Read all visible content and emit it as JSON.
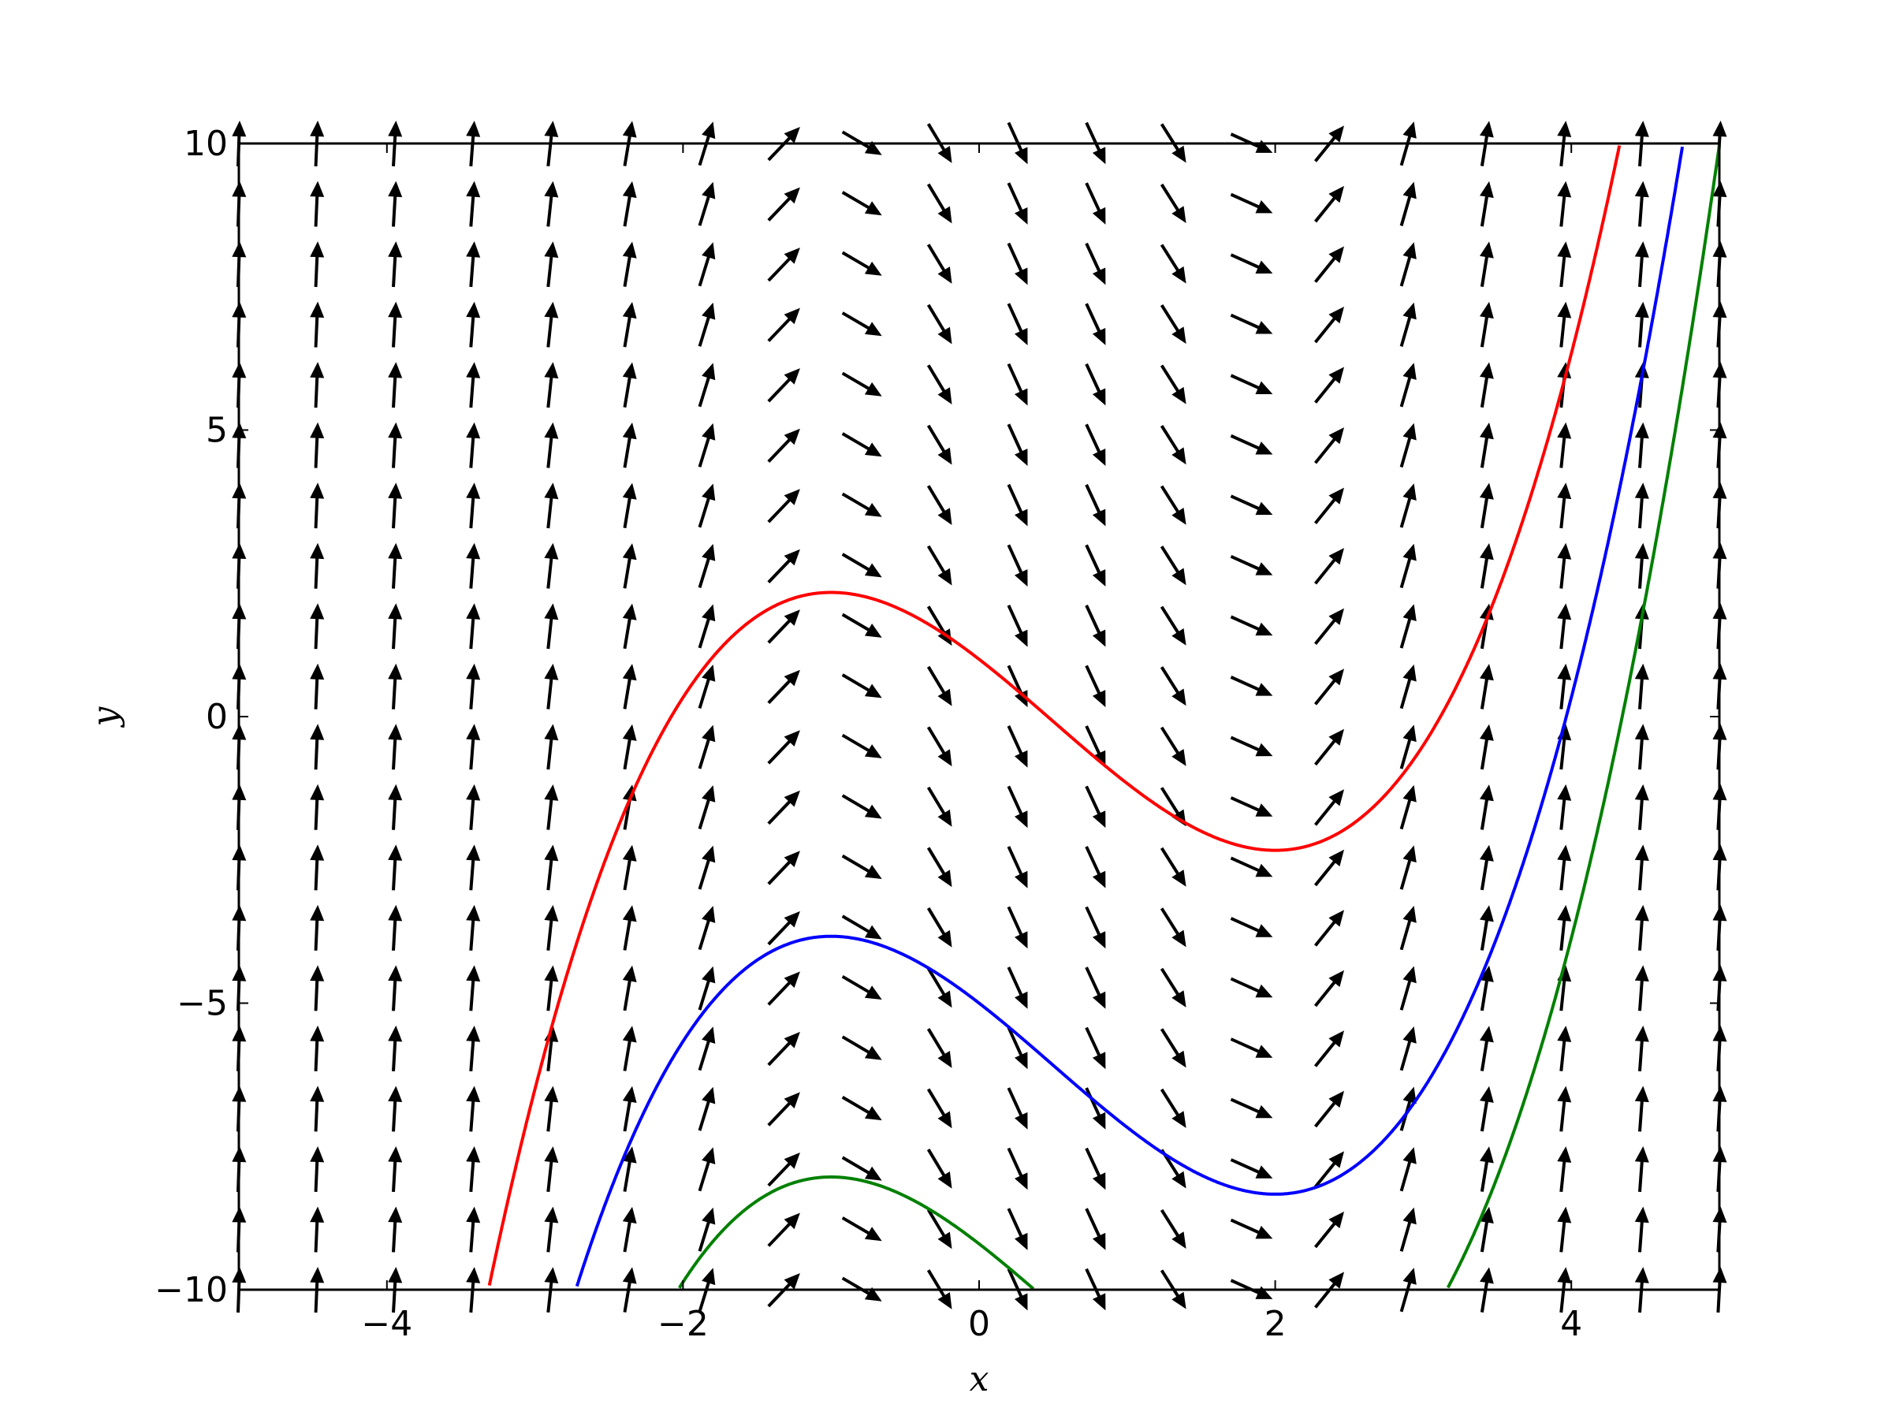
{
  "chart_data": {
    "type": "vector-field with solution curves",
    "title": "",
    "xlabel": "x",
    "ylabel": "y",
    "xlim": [
      -5,
      5
    ],
    "ylim": [
      -10,
      10
    ],
    "xticks": [
      -4,
      -2,
      0,
      2,
      4
    ],
    "yticks": [
      -10,
      -5,
      0,
      5,
      10
    ],
    "xtick_labels": [
      "−4",
      "−2",
      "0",
      "2",
      "4"
    ],
    "ytick_labels": [
      "−10",
      "−5",
      "0",
      "5",
      "10"
    ],
    "grid": false,
    "legend": "none",
    "slope_field": {
      "equation_slope": "x^2 - x - 2",
      "x_values": [
        -5,
        -4.4737,
        -3.9474,
        -3.4211,
        -2.8947,
        -2.3684,
        -1.8421,
        -1.3158,
        -0.7895,
        -0.2632,
        0.2632,
        0.7895,
        1.3158,
        1.8421,
        2.3684,
        2.8947,
        3.4211,
        3.9474,
        4.4737,
        5
      ],
      "y_values": [
        -10,
        -8.9474,
        -7.8947,
        -6.8421,
        -5.7895,
        -4.7368,
        -3.6842,
        -2.6316,
        -1.5789,
        -0.5263,
        0.5263,
        1.5789,
        2.6316,
        3.6842,
        4.7368,
        5.7895,
        6.8421,
        7.8947,
        8.9474,
        10
      ]
    },
    "series": [
      {
        "color": "#ff0000",
        "constant": 1.0
      },
      {
        "color": "#0000ff",
        "constant": -5.0
      },
      {
        "color": "#008000",
        "constant": -9.2
      }
    ],
    "curve_family": "y = x^3/3 - x^2/2 - 2x + C"
  }
}
